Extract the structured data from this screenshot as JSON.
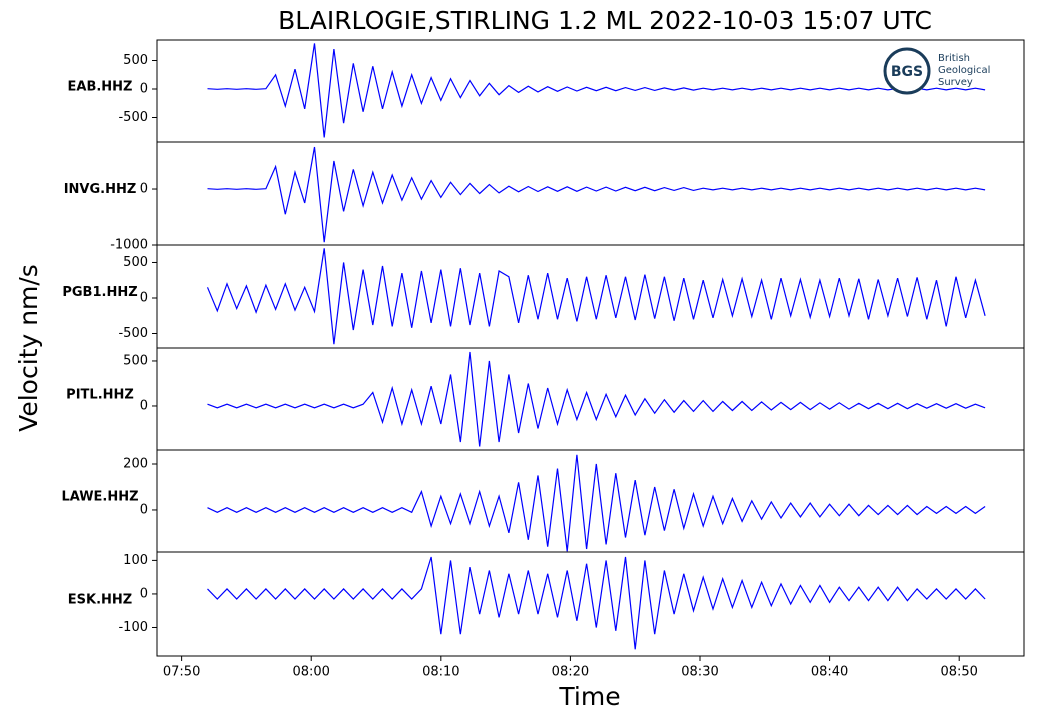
{
  "chart_data": {
    "type": "line",
    "title": "BLAIRLOGIE,STIRLING 1.2 ML   2022-10-03 15:07 UTC",
    "xlabel": "Time",
    "ylabel": "Velocity nm/s",
    "xlim": [
      468.1,
      535
    ],
    "xticks": [
      {
        "value": 470,
        "label": "07:50"
      },
      {
        "value": 480,
        "label": "08:00"
      },
      {
        "value": 490,
        "label": "08:10"
      },
      {
        "value": 500,
        "label": "08:20"
      },
      {
        "value": 510,
        "label": "08:30"
      },
      {
        "value": 520,
        "label": "08:40"
      },
      {
        "value": 530,
        "label": "08:50"
      }
    ],
    "x": [
      472,
      472.75,
      473.5,
      474.25,
      475,
      475.75,
      476.5,
      477.25,
      478,
      478.75,
      479.5,
      480.25,
      481,
      481.75,
      482.5,
      483.25,
      484,
      484.75,
      485.5,
      486.25,
      487,
      487.75,
      488.5,
      489.25,
      490,
      490.75,
      491.5,
      492.25,
      493,
      493.75,
      494.5,
      495.25,
      496,
      496.75,
      497.5,
      498.25,
      499,
      499.75,
      500.5,
      501.25,
      502,
      502.75,
      503.5,
      504.25,
      505,
      505.75,
      506.5,
      507.25,
      508,
      508.75,
      509.5,
      510.25,
      511,
      511.75,
      512.5,
      513.25,
      514,
      514.75,
      515.5,
      516.25,
      517,
      517.75,
      518.5,
      519.25,
      520,
      520.75,
      521.5,
      522.25,
      523,
      523.75,
      524.5,
      525.25,
      526,
      526.75,
      527.5,
      528.25,
      529,
      529.75,
      530.5,
      531.25,
      532
    ],
    "series": [
      {
        "name": "EAB.HHZ",
        "color": "#0000ff",
        "ylim": [
          -930,
          860
        ],
        "yticks": [
          -500,
          0,
          500
        ],
        "values": [
          5,
          -5,
          5,
          -5,
          5,
          -5,
          5,
          250,
          -300,
          350,
          -350,
          800,
          -850,
          700,
          -600,
          450,
          -400,
          400,
          -350,
          300,
          -300,
          250,
          -250,
          200,
          -200,
          180,
          -150,
          150,
          -120,
          100,
          -100,
          60,
          -60,
          50,
          -50,
          40,
          -40,
          35,
          -35,
          30,
          -30,
          30,
          -30,
          25,
          -25,
          25,
          -25,
          20,
          -20,
          20,
          -20,
          15,
          -15,
          15,
          -15,
          15,
          -15,
          15,
          -15,
          15,
          -15,
          15,
          -15,
          15,
          -15,
          15,
          -15,
          15,
          -15,
          15,
          -15,
          15,
          -15,
          15,
          -15,
          15,
          -15,
          15,
          -15,
          15,
          -15
        ]
      },
      {
        "name": "INVG.HHZ",
        "color": "#0000ff",
        "ylim": [
          -1000,
          840
        ],
        "yticks": [
          -1000,
          0
        ],
        "values": [
          5,
          -5,
          5,
          -5,
          5,
          -5,
          5,
          400,
          -450,
          300,
          -250,
          750,
          -950,
          500,
          -400,
          350,
          -300,
          300,
          -250,
          250,
          -200,
          200,
          -180,
          150,
          -150,
          120,
          -100,
          100,
          -80,
          80,
          -70,
          50,
          -50,
          45,
          -45,
          40,
          -40,
          40,
          -40,
          35,
          -35,
          35,
          -35,
          30,
          -30,
          30,
          -30,
          25,
          -25,
          25,
          -25,
          15,
          -15,
          15,
          -15,
          15,
          -15,
          15,
          -15,
          15,
          -15,
          15,
          -15,
          15,
          -15,
          15,
          -15,
          15,
          -15,
          15,
          -15,
          15,
          -15,
          15,
          -15,
          15,
          -15,
          15,
          -15,
          15,
          -15
        ]
      },
      {
        "name": "PGB1.HHZ",
        "color": "#0000ff",
        "ylim": [
          -704,
          746
        ],
        "yticks": [
          -500,
          0,
          500
        ],
        "values": [
          150,
          -180,
          200,
          -150,
          170,
          -200,
          180,
          -160,
          200,
          -170,
          150,
          -190,
          700,
          -650,
          500,
          -450,
          400,
          -380,
          450,
          -400,
          350,
          -420,
          380,
          -350,
          400,
          -400,
          420,
          -380,
          350,
          -400,
          380,
          300,
          -350,
          320,
          -300,
          350,
          -300,
          280,
          -330,
          300,
          -300,
          320,
          -280,
          300,
          -310,
          330,
          -290,
          300,
          -320,
          280,
          -300,
          250,
          -280,
          260,
          -250,
          270,
          -260,
          250,
          -300,
          280,
          -250,
          260,
          -270,
          250,
          -260,
          280,
          -250,
          270,
          -300,
          260,
          -250,
          280,
          -260,
          290,
          -300,
          250,
          -400,
          300,
          -280,
          250,
          -250
        ]
      },
      {
        "name": "PITL.HHZ",
        "color": "#0000ff",
        "ylim": [
          -489,
          644
        ],
        "yticks": [
          0,
          500
        ],
        "values": [
          20,
          -20,
          20,
          -20,
          20,
          -20,
          20,
          -20,
          20,
          -20,
          20,
          -20,
          20,
          -20,
          20,
          -20,
          20,
          150,
          -180,
          200,
          -200,
          180,
          -200,
          220,
          -200,
          350,
          -400,
          600,
          -450,
          500,
          -400,
          350,
          -300,
          250,
          -250,
          200,
          -200,
          180,
          -150,
          150,
          -150,
          130,
          -120,
          120,
          -100,
          80,
          -80,
          70,
          -70,
          60,
          -60,
          60,
          -60,
          50,
          -50,
          50,
          -50,
          45,
          -45,
          40,
          -40,
          40,
          -40,
          35,
          -35,
          35,
          -35,
          30,
          -30,
          30,
          -30,
          30,
          -30,
          25,
          -25,
          25,
          -25,
          25,
          -25,
          20,
          -20
        ]
      },
      {
        "name": "LAWE.HHZ",
        "color": "#0000ff",
        "ylim": [
          -183,
          261
        ],
        "yticks": [
          0,
          200
        ],
        "values": [
          10,
          -10,
          10,
          -10,
          10,
          -10,
          10,
          -10,
          10,
          -10,
          10,
          -10,
          10,
          -10,
          10,
          -10,
          10,
          -10,
          10,
          -10,
          10,
          -10,
          80,
          -70,
          60,
          -60,
          70,
          -60,
          80,
          -70,
          60,
          -100,
          120,
          -130,
          150,
          -160,
          180,
          -180,
          240,
          -170,
          200,
          -150,
          160,
          -120,
          130,
          -110,
          100,
          -90,
          90,
          -80,
          70,
          -70,
          60,
          -60,
          50,
          -50,
          40,
          -40,
          35,
          -35,
          30,
          -30,
          30,
          -30,
          25,
          -25,
          25,
          -25,
          20,
          -20,
          20,
          -20,
          20,
          -20,
          15,
          -15,
          15,
          -15,
          15,
          -15,
          15
        ]
      },
      {
        "name": "ESK.HHZ",
        "color": "#0000ff",
        "ylim": [
          -185,
          125
        ],
        "yticks": [
          -100,
          0,
          100
        ],
        "values": [
          15,
          -15,
          15,
          -15,
          15,
          -15,
          15,
          -15,
          15,
          -15,
          15,
          -15,
          15,
          -15,
          15,
          -15,
          15,
          -15,
          15,
          -15,
          15,
          -15,
          15,
          110,
          -120,
          100,
          -120,
          80,
          -60,
          70,
          -70,
          60,
          -60,
          70,
          -60,
          60,
          -70,
          70,
          -80,
          90,
          -100,
          100,
          -110,
          110,
          -165,
          100,
          -120,
          70,
          -60,
          60,
          -50,
          50,
          -45,
          45,
          -40,
          40,
          -40,
          35,
          -35,
          30,
          -30,
          25,
          -25,
          25,
          -25,
          20,
          -20,
          20,
          -20,
          20,
          -20,
          20,
          -20,
          15,
          -15,
          15,
          -15,
          15,
          -15,
          15,
          -15
        ]
      }
    ],
    "logo": {
      "abbr": "BGS",
      "lines": [
        "British",
        "Geological",
        "Survey"
      ]
    }
  }
}
